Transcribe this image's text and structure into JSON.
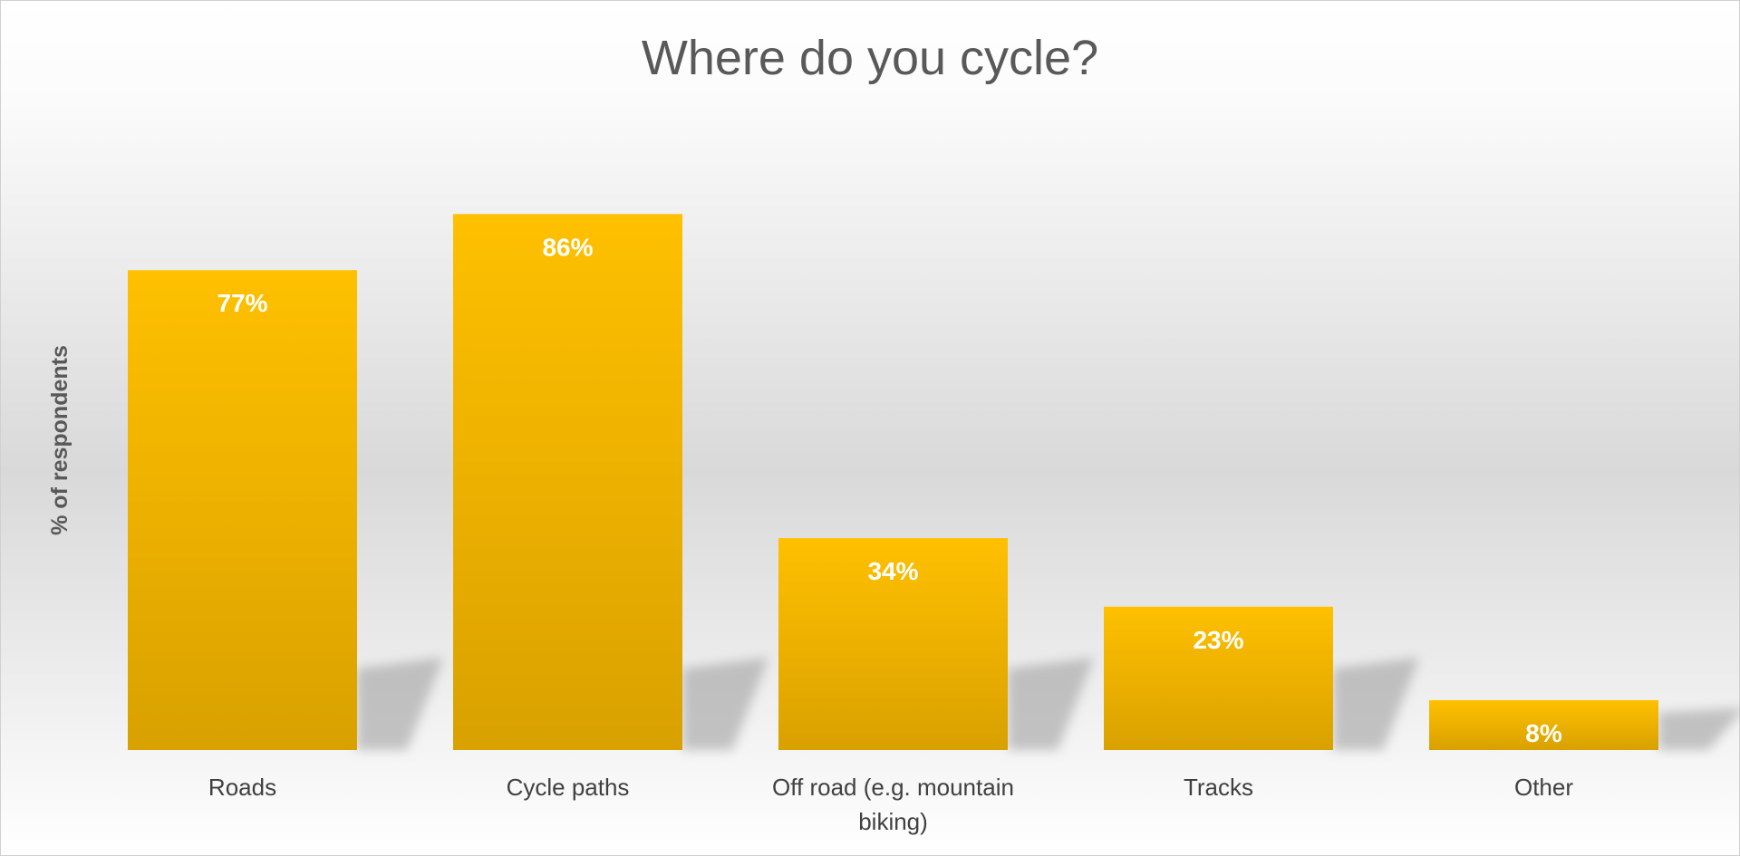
{
  "chart_data": {
    "type": "bar",
    "title": "Where do you cycle?",
    "ylabel": "% of respondents",
    "xlabel": "",
    "categories": [
      "Roads",
      "Cycle paths",
      "Off road (e.g. mountain biking)",
      "Tracks",
      "Other"
    ],
    "category_lines": [
      [
        "Roads"
      ],
      [
        "Cycle paths"
      ],
      [
        "Off road (e.g. mountain",
        "biking)"
      ],
      [
        "Tracks"
      ],
      [
        "Other"
      ]
    ],
    "values": [
      77,
      86,
      34,
      23,
      8
    ],
    "data_labels": [
      "77%",
      "86%",
      "34%",
      "23%",
      "8%"
    ],
    "ylim": [
      0,
      100
    ],
    "grid": false,
    "legend": "none",
    "colors": {
      "bar_top": "#FFC000",
      "bar_bottom": "#D9A100",
      "background_top": "#FFFFFF",
      "background_mid": "#D9D9D9",
      "text": "#595959"
    }
  }
}
